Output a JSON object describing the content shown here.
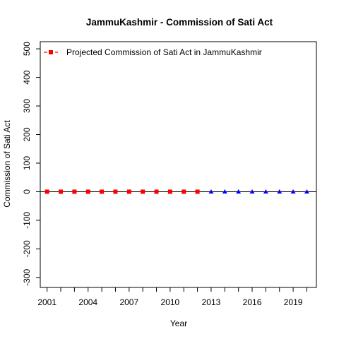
{
  "chart_data": {
    "type": "scatter",
    "title": "JammuKashmir  -  Commission of Sati Act",
    "xlabel": "Year",
    "ylabel": "Commission of Sati Act",
    "xlim": [
      2000.5,
      2020.7
    ],
    "ylim": [
      -335,
      525
    ],
    "x_ticks": [
      2001,
      2004,
      2007,
      2010,
      2013,
      2016,
      2019
    ],
    "x_minor_ticks": [
      2001,
      2002,
      2003,
      2004,
      2005,
      2006,
      2007,
      2008,
      2009,
      2010,
      2011,
      2012,
      2013,
      2014,
      2015,
      2016,
      2017,
      2018,
      2019,
      2020
    ],
    "y_ticks": [
      -300,
      -200,
      -100,
      0,
      100,
      200,
      300,
      400,
      500
    ],
    "zero_line": true,
    "grid": false,
    "legend_position": "top-left",
    "legend": [
      {
        "label": "Projected  Commission of Sati Act  in  JammuKashmir",
        "color": "#ff0000",
        "marker": "square",
        "line": "dashed"
      }
    ],
    "series": [
      {
        "name": "Projected  Commission of Sati Act  in  JammuKashmir",
        "color": "#ff0000",
        "marker": "square",
        "x": [
          2001,
          2002,
          2003,
          2004,
          2005,
          2006,
          2007,
          2008,
          2009,
          2010,
          2011,
          2012
        ],
        "values": [
          0,
          0,
          0,
          0,
          0,
          0,
          0,
          0,
          0,
          0,
          0,
          0
        ]
      },
      {
        "color": "#0000ff",
        "marker": "triangle",
        "x": [
          2013,
          2014,
          2015,
          2016,
          2017,
          2018,
          2019,
          2020
        ],
        "values": [
          0,
          0,
          0,
          0,
          0,
          0,
          0,
          0
        ]
      }
    ]
  }
}
